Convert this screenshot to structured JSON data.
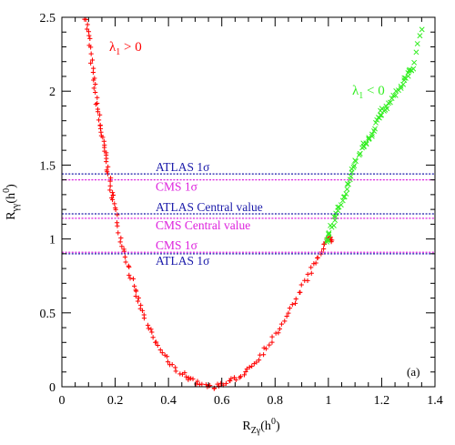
{
  "chart_data": {
    "type": "scatter",
    "title": "",
    "panel_label": "(a)",
    "xlabel": {
      "main": "R",
      "sub": "Zγ",
      "rest": "(h",
      "sup": "0",
      "close": ")"
    },
    "ylabel": {
      "main": "R",
      "sub": "γγ",
      "rest": "(h",
      "sup": "0",
      "close": ")"
    },
    "xlim": [
      0,
      1.4
    ],
    "ylim": [
      0,
      2.5
    ],
    "x_ticks": [
      "0",
      "0.2",
      "0.4",
      "0.6",
      "0.8",
      "1",
      "1.2",
      "1.4"
    ],
    "y_ticks": [
      "0",
      "0.5",
      "1",
      "1.5",
      "2",
      "2.5"
    ],
    "series": [
      {
        "name": "λ1 > 0",
        "label_text": "λ",
        "label_sub": "1",
        "label_rest": " > 0",
        "color": "#ff0000",
        "marker": "plus",
        "points": [
          [
            0.09,
            2.5
          ],
          [
            0.1,
            2.38
          ],
          [
            0.11,
            2.22
          ],
          [
            0.12,
            2.07
          ],
          [
            0.13,
            1.93
          ],
          [
            0.14,
            1.8
          ],
          [
            0.15,
            1.7
          ],
          [
            0.16,
            1.6
          ],
          [
            0.17,
            1.5
          ],
          [
            0.18,
            1.38
          ],
          [
            0.19,
            1.29
          ],
          [
            0.2,
            1.19
          ],
          [
            0.22,
            1.02
          ],
          [
            0.24,
            0.88
          ],
          [
            0.26,
            0.74
          ],
          [
            0.28,
            0.62
          ],
          [
            0.3,
            0.51
          ],
          [
            0.33,
            0.38
          ],
          [
            0.36,
            0.27
          ],
          [
            0.4,
            0.17
          ],
          [
            0.44,
            0.1
          ],
          [
            0.48,
            0.05
          ],
          [
            0.52,
            0.02
          ],
          [
            0.56,
            0.0
          ],
          [
            0.6,
            0.01
          ],
          [
            0.64,
            0.04
          ],
          [
            0.68,
            0.09
          ],
          [
            0.72,
            0.16
          ],
          [
            0.76,
            0.25
          ],
          [
            0.8,
            0.35
          ],
          [
            0.84,
            0.47
          ],
          [
            0.88,
            0.6
          ],
          [
            0.92,
            0.73
          ],
          [
            0.95,
            0.84
          ],
          [
            0.98,
            0.94
          ],
          [
            1.0,
            1.01
          ],
          [
            1.01,
            0.98
          ]
        ]
      },
      {
        "name": "λ1 < 0",
        "label_text": "λ",
        "label_sub": "1",
        "label_rest": " < 0",
        "color": "#33ee22",
        "marker": "cross",
        "points": [
          [
            0.99,
            0.98
          ],
          [
            1.0,
            1.03
          ],
          [
            1.02,
            1.12
          ],
          [
            1.04,
            1.2
          ],
          [
            1.06,
            1.3
          ],
          [
            1.08,
            1.4
          ],
          [
            1.1,
            1.5
          ],
          [
            1.12,
            1.59
          ],
          [
            1.14,
            1.65
          ],
          [
            1.16,
            1.7
          ],
          [
            1.18,
            1.8
          ],
          [
            1.2,
            1.86
          ],
          [
            1.22,
            1.9
          ],
          [
            1.25,
            1.98
          ],
          [
            1.28,
            2.05
          ],
          [
            1.3,
            2.12
          ],
          [
            1.32,
            2.15
          ],
          [
            1.35,
            2.42
          ]
        ]
      }
    ],
    "reference_lines": [
      {
        "label": "ATLAS 1σ",
        "value": 1.44,
        "color": "#1a1aaa",
        "text_side": "above"
      },
      {
        "label": "CMS 1σ",
        "value": 1.4,
        "color": "#dd22dd",
        "text_side": "below"
      },
      {
        "label": "ATLAS Central value",
        "value": 1.17,
        "color": "#1a1aaa",
        "text_side": "above"
      },
      {
        "label": "CMS Central value",
        "value": 1.14,
        "color": "#dd22dd",
        "text_side": "below"
      },
      {
        "label": "CMS 1σ",
        "value": 0.91,
        "color": "#dd22dd",
        "text_side": "above"
      },
      {
        "label": "ATLAS 1σ",
        "value": 0.9,
        "color": "#1a1aaa",
        "text_side": "below"
      }
    ]
  }
}
